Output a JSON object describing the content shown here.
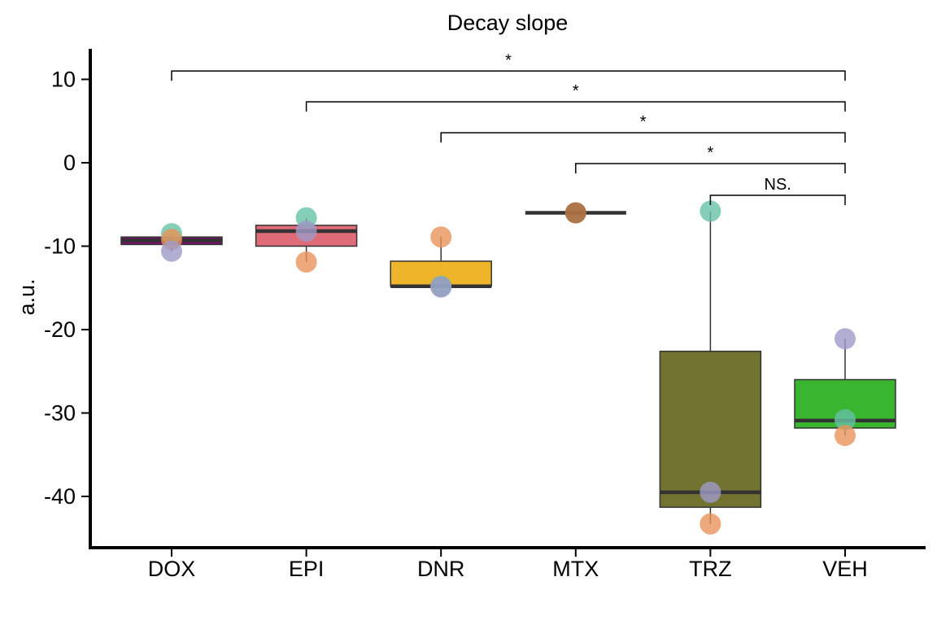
{
  "chart_data": {
    "type": "box",
    "title": "Decay slope",
    "xlabel": "",
    "ylabel": "a.u.",
    "ylim": [
      -46,
      14
    ],
    "yticks": [
      10,
      0,
      -10,
      -20,
      -30,
      -40
    ],
    "ytick_labels": [
      "10",
      "0",
      "-10",
      "-20",
      "-30",
      "-40"
    ],
    "grid": false,
    "legend": "none",
    "categories": [
      "DOX",
      "EPI",
      "DNR",
      "MTX",
      "TRZ",
      "VEH"
    ],
    "boxes": [
      {
        "category": "DOX",
        "q1": -9.8,
        "median": -9.3,
        "q3": -8.9,
        "whisker_low": -10.6,
        "whisker_high": -8.5,
        "fill": "#7b0f6b"
      },
      {
        "category": "EPI",
        "q1": -10.0,
        "median": -8.2,
        "q3": -7.5,
        "whisker_low": -11.9,
        "whisker_high": -6.6,
        "fill": "#e06b78"
      },
      {
        "category": "DNR",
        "q1": -14.8,
        "median": -14.8,
        "q3": -11.8,
        "whisker_low": -14.9,
        "whisker_high": -8.9,
        "fill": "#efb52a"
      },
      {
        "category": "MTX",
        "q1": -6.0,
        "median": -6.0,
        "q3": -6.0,
        "whisker_low": -6.0,
        "whisker_high": -6.0,
        "fill": "#9b6a3a"
      },
      {
        "category": "TRZ",
        "q1": -41.3,
        "median": -39.5,
        "q3": -22.6,
        "whisker_low": -43.3,
        "whisker_high": -5.8,
        "fill": "#737331"
      },
      {
        "category": "VEH",
        "q1": -31.8,
        "median": -30.9,
        "q3": -26.0,
        "whisker_low": -32.7,
        "whisker_high": -21.1,
        "fill": "#3ab530"
      }
    ],
    "points": [
      {
        "category": "DOX",
        "y": -8.5,
        "color": "#66c2a5"
      },
      {
        "category": "DOX",
        "y": -9.2,
        "color": "#e8935a"
      },
      {
        "category": "DOX",
        "y": -10.6,
        "color": "#9e9ac8"
      },
      {
        "category": "EPI",
        "y": -6.6,
        "color": "#66c2a5"
      },
      {
        "category": "EPI",
        "y": -8.2,
        "color": "#9e9ac8"
      },
      {
        "category": "EPI",
        "y": -11.9,
        "color": "#e8935a"
      },
      {
        "category": "DNR",
        "y": -8.9,
        "color": "#e8935a"
      },
      {
        "category": "DNR",
        "y": -14.8,
        "color": "#66c2a5"
      },
      {
        "category": "DNR",
        "y": -14.9,
        "color": "#9e9ac8"
      },
      {
        "category": "MTX",
        "y": -6.0,
        "color": "#e8935a"
      },
      {
        "category": "MTX",
        "y": -6.0,
        "color": "#9e6a40"
      },
      {
        "category": "TRZ",
        "y": -5.8,
        "color": "#66c2a5"
      },
      {
        "category": "TRZ",
        "y": -39.5,
        "color": "#9e9ac8"
      },
      {
        "category": "TRZ",
        "y": -43.3,
        "color": "#e8935a"
      },
      {
        "category": "VEH",
        "y": -21.1,
        "color": "#9e9ac8"
      },
      {
        "category": "VEH",
        "y": -30.8,
        "color": "#66c2a5"
      },
      {
        "category": "VEH",
        "y": -32.7,
        "color": "#e8935a"
      }
    ],
    "significance": [
      {
        "from": "DOX",
        "to": "VEH",
        "label": "*",
        "y": 11.0
      },
      {
        "from": "EPI",
        "to": "VEH",
        "label": "*",
        "y": 7.3
      },
      {
        "from": "DNR",
        "to": "VEH",
        "label": "*",
        "y": 3.6
      },
      {
        "from": "MTX",
        "to": "VEH",
        "label": "*",
        "y": -0.1
      },
      {
        "from": "TRZ",
        "to": "VEH",
        "label": "NS.",
        "y": -3.9
      }
    ]
  }
}
